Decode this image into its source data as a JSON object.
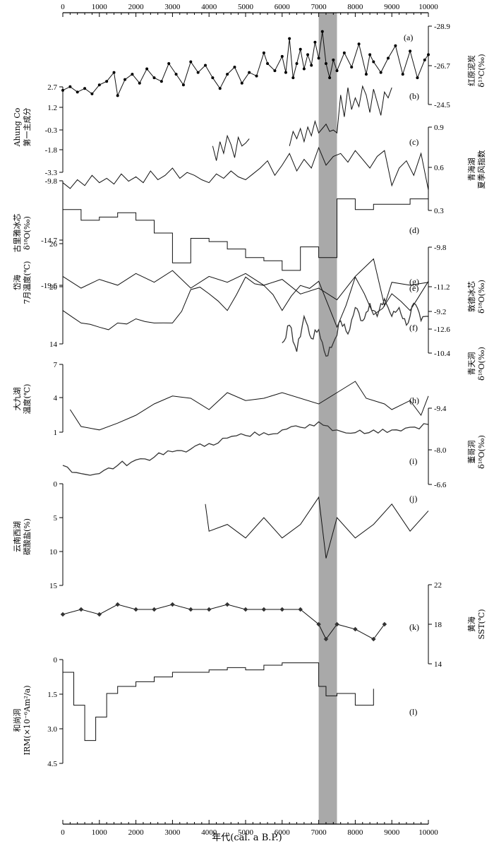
{
  "chart_data": {
    "type": "line",
    "xlabel": "年代(cal. a B.P.)",
    "xlim": [
      0,
      10000
    ],
    "x_ticks": [
      "0",
      "1000",
      "2000",
      "3000",
      "4000",
      "5000",
      "6000",
      "7000",
      "8000",
      "9000",
      "10000"
    ],
    "shaded_band": [
      7000,
      7500
    ],
    "panels": [
      {
        "id": "a",
        "letter": "(a)",
        "side": "right",
        "label_lines": [
          "红原泥炭",
          "δ¹³C(‰)"
        ],
        "ticks": [
          "-28.9",
          "-26.7",
          "-24.5"
        ],
        "ylim": [
          -24.5,
          -28.9
        ],
        "series": [
          {
            "x": [
              0,
              200,
              400,
              600,
              800,
              1000,
              1200,
              1400,
              1500,
              1700,
              1900,
              2100,
              2300,
              2500,
              2700,
              2900,
              3100,
              3300,
              3500,
              3700,
              3900,
              4100,
              4300,
              4500,
              4700,
              4900,
              5100,
              5300,
              5500,
              5600,
              5800,
              6000,
              6100,
              6200,
              6300,
              6400,
              6500,
              6600,
              6700,
              6800,
              6900,
              7000,
              7100,
              7200,
              7300,
              7400,
              7500,
              7700,
              7900,
              8100,
              8300,
              8400,
              8500,
              8700,
              8900,
              9100,
              9300,
              9500,
              9700,
              9900,
              10000
            ],
            "y": [
              -25.3,
              -25.5,
              -25.2,
              -25.4,
              -25.1,
              -25.6,
              -25.8,
              -26.3,
              -25.0,
              -25.9,
              -26.2,
              -25.7,
              -26.5,
              -26.0,
              -25.8,
              -26.8,
              -26.2,
              -25.6,
              -26.9,
              -26.3,
              -26.7,
              -26.0,
              -25.4,
              -26.2,
              -26.6,
              -25.7,
              -26.3,
              -26.1,
              -27.4,
              -26.8,
              -26.4,
              -27.2,
              -26.3,
              -28.2,
              -26.0,
              -26.8,
              -27.6,
              -26.5,
              -27.3,
              -26.7,
              -28.0,
              -27.1,
              -28.6,
              -26.8,
              -26.0,
              -27.0,
              -26.4,
              -27.4,
              -26.6,
              -27.9,
              -26.2,
              -27.3,
              -26.9,
              -26.3,
              -27.1,
              -27.8,
              -26.2,
              -27.5,
              -26.0,
              -27.0,
              -27.3
            ]
          }
        ]
      },
      {
        "id": "b",
        "letter": "(b)",
        "side": "left",
        "label_lines": [
          "Ahung Co",
          "第一主成分"
        ],
        "ticks": [
          "2.7",
          "1.2",
          "-0.3",
          "-1.8",
          "-3.3"
        ],
        "ylim": [
          -3.3,
          2.7
        ],
        "series": [
          {
            "x": [
              4100,
              4200,
              4300,
              4400,
              4500,
              4600,
              4700,
              4800,
              4900,
              5000,
              5100
            ],
            "y": [
              -1.5,
              -2.5,
              -1.2,
              -2.0,
              -0.8,
              -1.4,
              -2.3,
              -0.9,
              -1.5,
              -1.3,
              -1.0
            ]
          },
          {
            "x": [
              6200,
              6300,
              6400,
              6500,
              6600,
              6700,
              6800,
              6900,
              7000,
              7100,
              7200,
              7300,
              7400,
              7500,
              7600,
              7700,
              7800,
              7900,
              8000,
              8100,
              8200,
              8300,
              8400,
              8500,
              8600,
              8700,
              8800,
              8900,
              9000
            ],
            "y": [
              -1.5,
              -0.5,
              -1.0,
              -0.3,
              -1.2,
              -0.2,
              -0.8,
              0.2,
              -0.6,
              -0.3,
              0.0,
              -0.5,
              -0.4,
              -0.6,
              2.0,
              0.5,
              2.5,
              1.0,
              1.8,
              1.2,
              2.6,
              2.0,
              0.8,
              2.4,
              1.5,
              0.6,
              2.2,
              1.8,
              2.5
            ]
          }
        ]
      },
      {
        "id": "c",
        "letter": "(c)",
        "side": "right",
        "label_lines": [
          "青海湖",
          "夏季风指数"
        ],
        "ticks": [
          "0.9",
          "0.6",
          "0.3"
        ],
        "ylim": [
          0.3,
          0.9
        ],
        "series": [
          {
            "x": [
              0,
              200,
              400,
              600,
              800,
              1000,
              1200,
              1400,
              1600,
              1800,
              2000,
              2200,
              2400,
              2600,
              2800,
              3000,
              3200,
              3400,
              3600,
              3800,
              4000,
              4200,
              4400,
              4600,
              4800,
              5000,
              5200,
              5400,
              5600,
              5800,
              6000,
              6200,
              6400,
              6600,
              6800,
              7000,
              7200,
              7400,
              7600,
              7800,
              8000,
              8200,
              8400,
              8600,
              8800,
              9000,
              9200,
              9400,
              9600,
              9800,
              10000
            ],
            "y": [
              0.5,
              0.46,
              0.52,
              0.48,
              0.55,
              0.5,
              0.53,
              0.49,
              0.56,
              0.51,
              0.54,
              0.5,
              0.58,
              0.52,
              0.55,
              0.6,
              0.53,
              0.57,
              0.55,
              0.52,
              0.5,
              0.56,
              0.53,
              0.58,
              0.54,
              0.52,
              0.56,
              0.6,
              0.65,
              0.55,
              0.62,
              0.7,
              0.58,
              0.66,
              0.6,
              0.74,
              0.62,
              0.68,
              0.7,
              0.64,
              0.72,
              0.66,
              0.6,
              0.68,
              0.72,
              0.48,
              0.6,
              0.65,
              0.55,
              0.7,
              0.45
            ]
          }
        ]
      },
      {
        "id": "d",
        "letter": "(d)",
        "side": "left",
        "label_lines": [
          "古里雅冰芯",
          "δ¹⁸O(‰)"
        ],
        "ticks": [
          "-9.8",
          "-14.7",
          "-19.6"
        ],
        "ylim": [
          -19.6,
          -9.8
        ],
        "series": [
          {
            "x": [
              0,
              500,
              1000,
              1500,
              2000,
              2500,
              3000,
              3500,
              4000,
              4500,
              5000,
              5500,
              6000,
              6500,
              7000,
              7500,
              8000,
              8500,
              9000,
              9500,
              10000
            ],
            "y": [
              -12.5,
              -13.5,
              -13.2,
              -12.8,
              -13.5,
              -14.7,
              -17.5,
              -15.2,
              -15.5,
              -16.2,
              -17.0,
              -17.3,
              -18.2,
              -16.0,
              -17.0,
              -11.5,
              -12.5,
              -12.0,
              -12.0,
              -11.5,
              -11.0
            ]
          }
        ]
      },
      {
        "id": "e",
        "letter": "(e)",
        "side": "right",
        "label_lines": [
          "敦德冰芯",
          "δ¹⁸O(‰)"
        ],
        "ticks": [
          "-9.8",
          "-11.2",
          "-12.6"
        ],
        "ylim": [
          -12.6,
          -9.8
        ],
        "series": [
          {
            "x": [
              0,
              500,
              1000,
              1500,
              2000,
              2500,
              3000,
              3500,
              4000,
              4500,
              5000,
              5500,
              6000,
              6500,
              7000,
              7500,
              8000,
              8500,
              8800,
              9000,
              9500,
              10000
            ],
            "y": [
              -10.8,
              -11.2,
              -10.9,
              -11.1,
              -10.7,
              -11.0,
              -10.6,
              -11.2,
              -10.8,
              -11.0,
              -10.7,
              -11.1,
              -10.9,
              -11.4,
              -11.2,
              -11.6,
              -10.8,
              -10.2,
              -11.8,
              -11.0,
              -11.1,
              -11.0
            ]
          }
        ]
      },
      {
        "id": "f",
        "letter": "(f)",
        "side": "left",
        "label_lines": [
          "岱海",
          "7月温度(℃)"
        ],
        "ticks": [
          "26",
          "20",
          "14"
        ],
        "ylim": [
          14,
          26
        ],
        "series": [
          {
            "x": [
              0,
              500,
              1000,
              1500,
              2000,
              2500,
              3000,
              3500,
              4000,
              4500,
              5000,
              5500,
              6000,
              6500,
              7000,
              7500,
              8000,
              8500,
              9000,
              9500,
              10000
            ],
            "y": [
              18,
              16.5,
              16,
              16.5,
              17,
              16.5,
              16.5,
              20.5,
              20,
              18,
              22,
              21,
              18,
              21,
              21.5,
              16,
              22,
              17.5,
              20,
              18,
              21.5
            ]
          }
        ]
      },
      {
        "id": "g",
        "letter": "(g)",
        "side": "right",
        "label_lines": [
          "青天洞",
          "δ¹⁸O(‰)"
        ],
        "ticks": [
          "-9.2",
          "-10.4"
        ],
        "ylim": [
          -10.6,
          -8.2
        ],
        "series": [
          {
            "x": [
              6000,
              6200,
              6400,
              6600,
              6800,
              7000,
              7200,
              7400,
              7600,
              7800,
              8000,
              8200,
              8400,
              8600,
              8800,
              9000,
              9200,
              9400,
              9600,
              9800,
              10000
            ],
            "y": [
              -9.6,
              -9.2,
              -9.8,
              -9.0,
              -9.5,
              -9.3,
              -9.9,
              -9.6,
              -9.1,
              -9.4,
              -8.8,
              -9.1,
              -8.7,
              -9.0,
              -8.6,
              -9.0,
              -8.8,
              -9.2,
              -8.7,
              -9.1,
              -9.0
            ]
          }
        ]
      },
      {
        "id": "h",
        "letter": "(h)",
        "side": "left",
        "label_lines": [
          "大九湖",
          "温度(℃)"
        ],
        "ticks": [
          "7",
          "4",
          "1"
        ],
        "ylim": [
          1,
          7
        ],
        "series": [
          {
            "x": [
              200,
              500,
              1000,
              1500,
              2000,
              2500,
              3000,
              3500,
              4000,
              4500,
              5000,
              5500,
              6000,
              7000,
              8000,
              8300,
              8800,
              9000,
              9500,
              9800,
              10000
            ],
            "y": [
              3.0,
              1.5,
              1.2,
              1.8,
              2.5,
              3.5,
              4.2,
              4.0,
              3.0,
              4.5,
              3.8,
              4.0,
              4.5,
              3.5,
              5.5,
              4.0,
              3.5,
              3.0,
              3.8,
              2.5,
              4.2
            ]
          }
        ]
      },
      {
        "id": "i",
        "letter": "(i)",
        "side": "right",
        "label_lines": [
          "董哥洞",
          "δ¹⁸O(‰)"
        ],
        "ticks": [
          "-9.4",
          "-8.0",
          "-6.6"
        ],
        "ylim": [
          -6.6,
          -9.4
        ],
        "series": [
          {
            "x": [
              0,
              500,
              1000,
              1500,
              2000,
              2500,
              3000,
              3500,
              4000,
              4500,
              5000,
              5500,
              6000,
              6500,
              7000,
              7500,
              8000,
              8500,
              9000,
              9500,
              10000
            ],
            "y": [
              -7.3,
              -7.0,
              -7.0,
              -7.3,
              -7.5,
              -7.6,
              -7.8,
              -7.9,
              -8.1,
              -8.3,
              -8.4,
              -8.5,
              -8.6,
              -8.7,
              -8.9,
              -8.6,
              -8.5,
              -8.6,
              -8.6,
              -8.7,
              -8.8
            ]
          }
        ]
      },
      {
        "id": "j",
        "letter": "(j)",
        "side": "left",
        "label_lines": [
          "云南西湖",
          "碳酸盐(%)"
        ],
        "ticks": [
          "0",
          "5",
          "10",
          "15"
        ],
        "ylim": [
          15,
          0
        ],
        "series": [
          {
            "x": [
              3900,
              4000,
              4500,
              5000,
              5500,
              6000,
              6500,
              7000,
              7200,
              7500,
              8000,
              8500,
              9000,
              9500,
              10000
            ],
            "y": [
              3,
              7,
              6,
              8,
              5,
              8,
              6,
              2,
              11,
              5,
              8,
              6,
              3,
              7,
              4
            ]
          }
        ]
      },
      {
        "id": "k",
        "letter": "(k)",
        "side": "right",
        "label_lines": [
          "黄海",
          "SST(℃)"
        ],
        "ticks": [
          "22",
          "18",
          "14"
        ],
        "ylim": [
          14,
          22
        ],
        "series": [
          {
            "x": [
              0,
              500,
              1000,
              1500,
              2000,
              2500,
              3000,
              3500,
              4000,
              4500,
              5000,
              5500,
              6000,
              6500,
              7000,
              7200,
              7500,
              8000,
              8500,
              8800
            ],
            "y": [
              19,
              19.5,
              19,
              20,
              19.5,
              19.5,
              20,
              19.5,
              19.5,
              20,
              19.5,
              19.5,
              19.5,
              19.5,
              18,
              16.5,
              18,
              17.5,
              16.5,
              18
            ]
          }
        ]
      },
      {
        "id": "l",
        "letter": "(l)",
        "side": "left",
        "label_lines": [
          "和尚洞",
          "IRM(×10⁻⁶Am²/a)"
        ],
        "ticks": [
          "0",
          "1.5",
          "3.0",
          "4.5"
        ],
        "ylim": [
          4.5,
          0
        ],
        "series": [
          {
            "x": [
              0,
              300,
              600,
              900,
              1200,
              1500,
              2000,
              2500,
              3000,
              3500,
              4000,
              4500,
              5000,
              5500,
              6000,
              6500,
              7000,
              7200,
              7500,
              8000,
              8500
            ],
            "y": [
              0.6,
              2.0,
              3.5,
              2.5,
              1.5,
              1.2,
              1.0,
              0.8,
              0.6,
              0.6,
              0.5,
              0.4,
              0.5,
              0.3,
              0.2,
              0.2,
              1.2,
              1.6,
              1.5,
              2.0,
              1.3
            ]
          }
        ]
      }
    ]
  }
}
